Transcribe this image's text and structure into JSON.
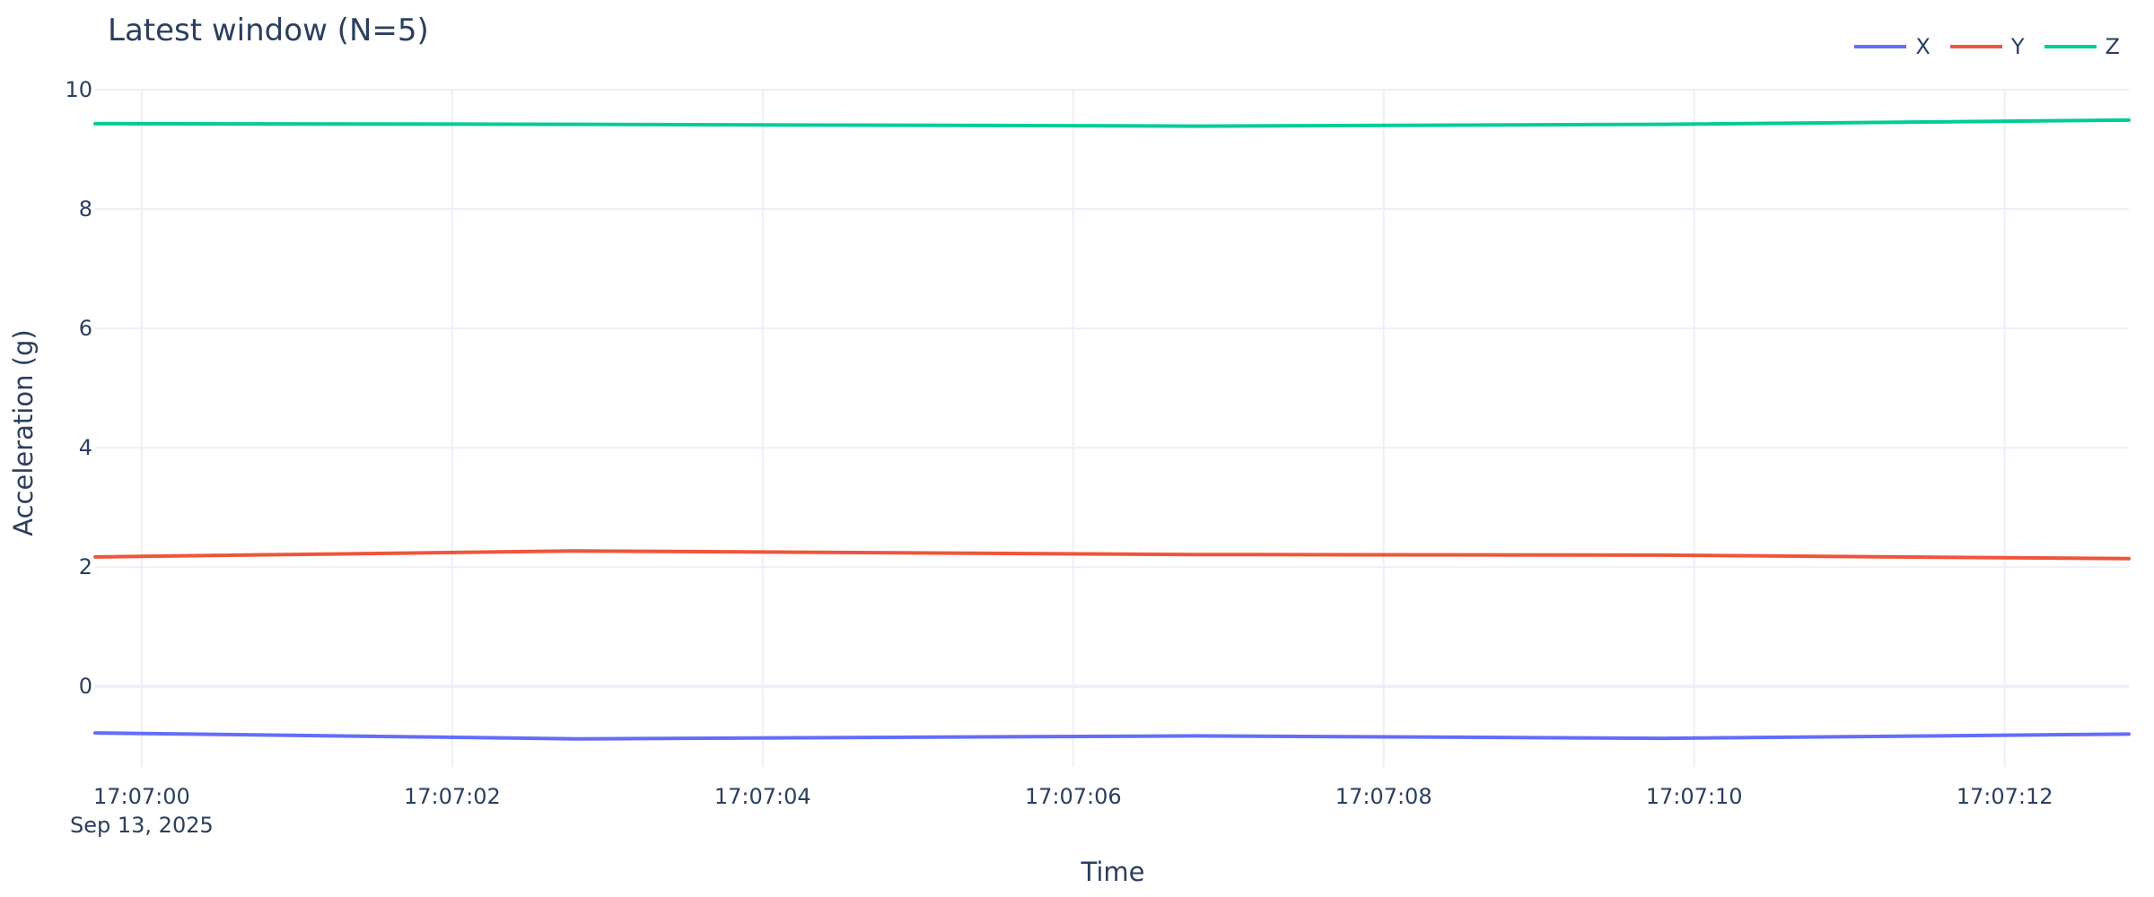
{
  "chart_data": {
    "type": "line",
    "title": "Latest window (N=5)",
    "xlabel": "Time",
    "ylabel": "Acceleration (g)",
    "x_tick_labels": [
      "17:07:00",
      "17:07:02",
      "17:07:04",
      "17:07:06",
      "17:07:08",
      "17:07:10",
      "17:07:12"
    ],
    "x_date_label": "Sep 13, 2025",
    "y_tick_labels": [
      "0",
      "2",
      "4",
      "6",
      "8",
      "10"
    ],
    "ylim": [
      -1.35,
      10
    ],
    "xlim": [
      "17:06:59.7",
      "17:07:12.8"
    ],
    "grid": true,
    "legend_position": "top-right",
    "x": [
      "17:06:59.7",
      "17:07:02.8",
      "17:07:06.8",
      "17:07:09.8",
      "17:07:12.8"
    ],
    "series": [
      {
        "name": "X",
        "color": "#636efa",
        "values": [
          -0.78,
          -0.88,
          -0.83,
          -0.87,
          -0.8
        ]
      },
      {
        "name": "Y",
        "color": "#ef553b",
        "values": [
          2.17,
          2.27,
          2.21,
          2.2,
          2.14
        ]
      },
      {
        "name": "Z",
        "color": "#00cc96",
        "values": [
          9.43,
          9.42,
          9.39,
          9.42,
          9.49
        ]
      }
    ]
  }
}
